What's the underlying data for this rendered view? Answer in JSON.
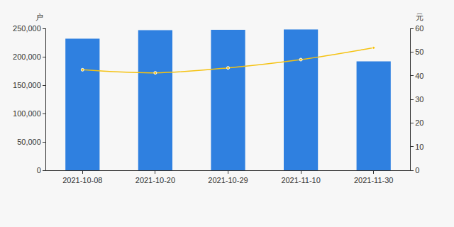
{
  "chart_data": {
    "type": "bar",
    "categories": [
      "2021-10-08",
      "2021-10-20",
      "2021-10-29",
      "2021-11-10",
      "2021-11-30"
    ],
    "series": [
      {
        "type": "bar",
        "color": "#2f80e0",
        "values": [
          232000,
          247000,
          247500,
          248000,
          192000
        ]
      },
      {
        "type": "line",
        "axis": "y2",
        "color": "#f5c211",
        "marker": "circle",
        "values": [
          42.5,
          41.2,
          43.3,
          46.8,
          51.8
        ]
      }
    ],
    "y_label": "户",
    "y2_label": "元",
    "ylim": [
      0,
      250000
    ],
    "yticks": [
      0,
      {
        "value": 50000,
        "label": "50,000"
      },
      {
        "value": 100000,
        "label": "100,000"
      },
      {
        "value": 150000,
        "label": "150,000"
      },
      {
        "value": 200000,
        "label": "200,000"
      },
      {
        "value": 250000,
        "label": "250,000"
      }
    ],
    "y2lim": [
      0,
      60
    ],
    "y2ticks": [
      0,
      10,
      20,
      30,
      40,
      50,
      60
    ],
    "grid": false
  }
}
